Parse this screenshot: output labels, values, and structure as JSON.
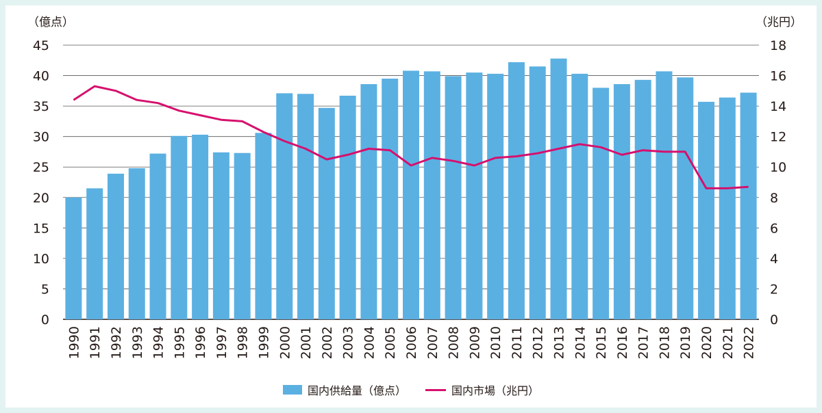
{
  "chart_data": {
    "type": "bar+line",
    "categories": [
      "1990",
      "1991",
      "1992",
      "1993",
      "1994",
      "1995",
      "1996",
      "1997",
      "1998",
      "1999",
      "2000",
      "2001",
      "2002",
      "2003",
      "2004",
      "2005",
      "2006",
      "2007",
      "2008",
      "2009",
      "2010",
      "2011",
      "2012",
      "2013",
      "2014",
      "2015",
      "2016",
      "2017",
      "2018",
      "2019",
      "2020",
      "2021",
      "2022"
    ],
    "series": [
      {
        "name": "国内供給量（億点）",
        "type": "bar",
        "axis": "left",
        "color": "#5bb0e2",
        "values": [
          20.0,
          21.5,
          23.9,
          24.8,
          27.2,
          30.1,
          30.3,
          27.4,
          27.3,
          30.6,
          37.1,
          37.0,
          34.7,
          36.7,
          38.6,
          39.5,
          40.8,
          40.7,
          39.9,
          40.5,
          40.3,
          42.2,
          41.5,
          42.8,
          40.3,
          38.0,
          38.6,
          39.3,
          40.7,
          39.7,
          35.7,
          36.4,
          37.2
        ]
      },
      {
        "name": "国内市場（兆円）",
        "type": "line",
        "axis": "right",
        "color": "#d6106d",
        "values": [
          14.4,
          15.3,
          15.0,
          14.4,
          14.2,
          13.7,
          13.4,
          13.1,
          13.0,
          12.3,
          11.7,
          11.2,
          10.5,
          10.8,
          11.2,
          11.1,
          10.1,
          10.6,
          10.4,
          10.1,
          10.6,
          10.7,
          10.9,
          11.2,
          11.5,
          11.3,
          10.8,
          11.1,
          11.0,
          11.0,
          8.6,
          8.6,
          8.7
        ]
      }
    ],
    "y_left": {
      "unit": "（億点）",
      "min": 0,
      "max": 45,
      "ticks": [
        "0",
        "5",
        "10",
        "15",
        "20",
        "25",
        "30",
        "35",
        "40",
        "45"
      ]
    },
    "y_right": {
      "unit": "（兆円）",
      "min": 0,
      "max": 18,
      "ticks": [
        "0",
        "2",
        "4",
        "6",
        "8",
        "10",
        "12",
        "14",
        "16",
        "18"
      ]
    },
    "grid": true,
    "legend": "bottom"
  }
}
